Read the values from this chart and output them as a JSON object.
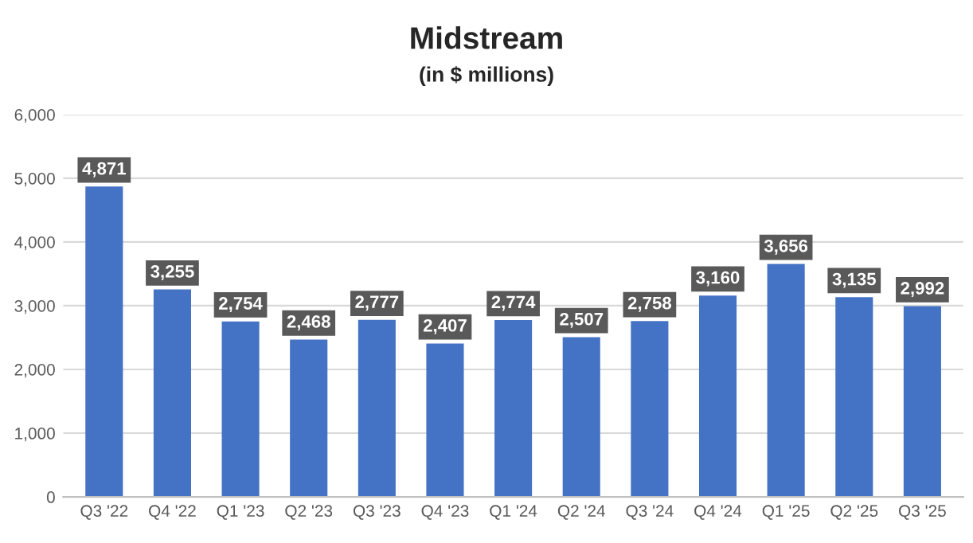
{
  "chart_data": {
    "type": "bar",
    "title": "Midstream",
    "subtitle": "(in $ millions)",
    "categories": [
      "Q3 '22",
      "Q4 '22",
      "Q1 '23",
      "Q2 '23",
      "Q3 '23",
      "Q4 '23",
      "Q1 '24",
      "Q2 '24",
      "Q3 '24",
      "Q4 '24",
      "Q1 '25",
      "Q2 '25",
      "Q3 '25"
    ],
    "values": [
      4871,
      3255,
      2754,
      2468,
      2777,
      2407,
      2774,
      2507,
      2758,
      3160,
      3656,
      3135,
      2992
    ],
    "color": "#4472c4",
    "ylim": [
      0,
      6000
    ],
    "yticks": [
      0,
      {
        "value": 1000,
        "label": "1,000"
      },
      {
        "value": 2000,
        "label": "2,000"
      },
      {
        "value": 3000,
        "label": "3,000"
      },
      {
        "value": 4000,
        "label": "4,000"
      },
      {
        "value": 5000,
        "label": "5,000"
      },
      {
        "value": 6000,
        "label": "6,000"
      }
    ],
    "value_labels": [
      "4,871",
      "3,255",
      "2,754",
      "2,468",
      "2,777",
      "2,407",
      "2,774",
      "2,507",
      "2,758",
      "3,160",
      "3,656",
      "3,135",
      "2,992"
    ],
    "grid": "y",
    "legend": false
  }
}
